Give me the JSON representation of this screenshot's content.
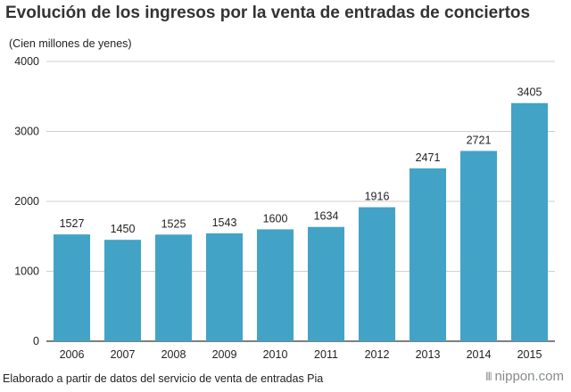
{
  "chart_data": {
    "type": "bar",
    "title": "Evolución de los ingresos por la venta de entradas de conciertos",
    "ylabel": "(Cien millones de yenes)",
    "xlabel": "",
    "categories": [
      "2006",
      "2007",
      "2008",
      "2009",
      "2010",
      "2011",
      "2012",
      "2013",
      "2014",
      "2015"
    ],
    "values": [
      1527,
      1450,
      1525,
      1543,
      1600,
      1634,
      1916,
      2471,
      2721,
      3405
    ],
    "ylim": [
      0,
      4000
    ],
    "yticks": [
      0,
      1000,
      2000,
      3000,
      4000
    ],
    "grid": true,
    "bar_color": "#42a3c7",
    "data_labels": true
  },
  "source": "Elaborado a partir de datos del servicio de venta de entradas Pia",
  "logo": {
    "name": "nippon",
    "dot": ".",
    "suffix": "com",
    "accent_color": "#3fa1c6"
  }
}
